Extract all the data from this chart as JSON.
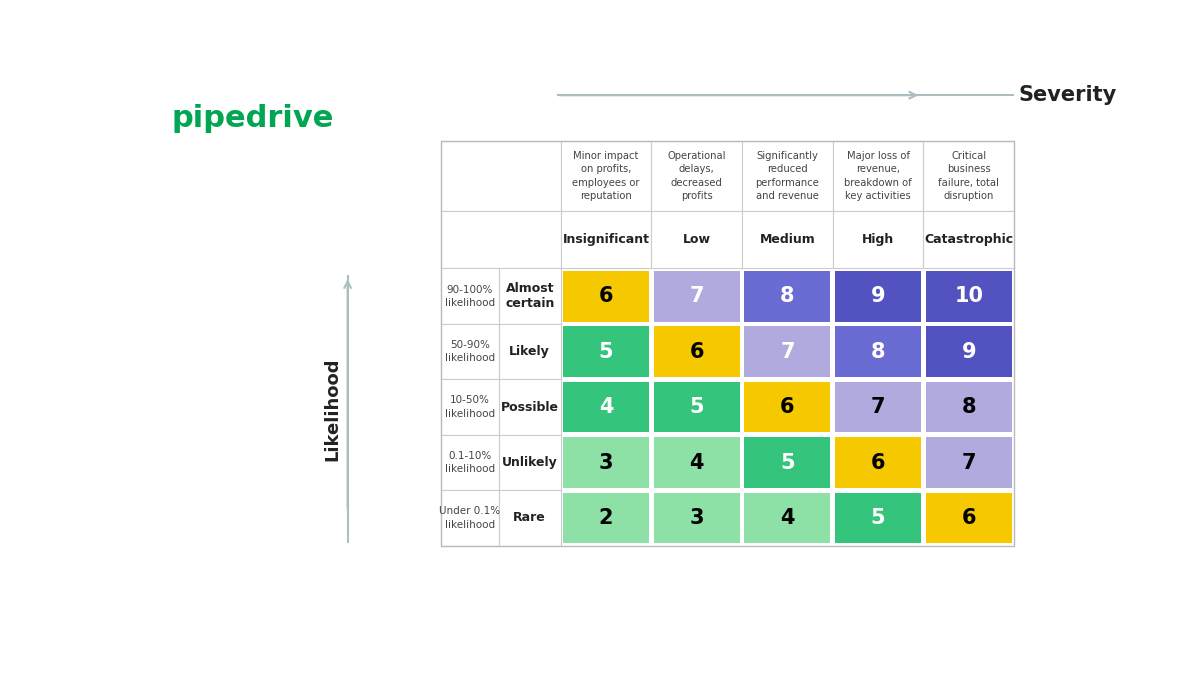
{
  "title": "Severity",
  "likelihood_label": "Likelihood",
  "severity_labels": [
    "Insignificant",
    "Low",
    "Medium",
    "High",
    "Catastrophic"
  ],
  "severity_descriptions": [
    "Minor impact\non profits,\nemployees or\nreputation",
    "Operational\ndelays,\ndecreased\nprofits",
    "Significantly\nreduced\nperformance\nand revenue",
    "Major loss of\nrevenue,\nbreakdown of\nkey activities",
    "Critical\nbusiness\nfailure, total\ndisruption"
  ],
  "likelihood_labels": [
    "Almost\ncertain",
    "Likely",
    "Possible",
    "Unlikely",
    "Rare"
  ],
  "likelihood_descriptions": [
    "90-100%\nlikelihood",
    "50-90%\nlikelihood",
    "10-50%\nlikelihood",
    "0.1-10%\nlikelihood",
    "Under 0.1%\nlikelihood"
  ],
  "matrix_values": [
    [
      6,
      7,
      8,
      9,
      10
    ],
    [
      5,
      6,
      7,
      8,
      9
    ],
    [
      4,
      5,
      6,
      7,
      8
    ],
    [
      3,
      4,
      5,
      6,
      7
    ],
    [
      2,
      3,
      4,
      5,
      6
    ]
  ],
  "matrix_colors": [
    [
      "#F5C800",
      "#B0AADE",
      "#6B6BD4",
      "#5252C0",
      "#5252C0"
    ],
    [
      "#34C47C",
      "#F5C800",
      "#B0AADE",
      "#6B6BD4",
      "#5252C0"
    ],
    [
      "#34C47C",
      "#34C47C",
      "#F5C800",
      "#B0AADE",
      "#B0AADE"
    ],
    [
      "#8DE0A6",
      "#8DE0A6",
      "#34C47C",
      "#F5C800",
      "#B0AADE"
    ],
    [
      "#8DE0A6",
      "#8DE0A6",
      "#8DE0A6",
      "#34C47C",
      "#F5C800"
    ]
  ],
  "text_colors": [
    [
      "#000000",
      "#ffffff",
      "#ffffff",
      "#ffffff",
      "#ffffff"
    ],
    [
      "#ffffff",
      "#000000",
      "#ffffff",
      "#ffffff",
      "#ffffff"
    ],
    [
      "#ffffff",
      "#ffffff",
      "#000000",
      "#000000",
      "#000000"
    ],
    [
      "#000000",
      "#000000",
      "#ffffff",
      "#000000",
      "#000000"
    ],
    [
      "#000000",
      "#000000",
      "#000000",
      "#ffffff",
      "#000000"
    ]
  ],
  "pipedrive_color": "#00A651",
  "background_color": "#ffffff",
  "arrow_color": "#AABFBF",
  "border_color": "#cccccc",
  "text_dark": "#222222",
  "text_mid": "#444444"
}
